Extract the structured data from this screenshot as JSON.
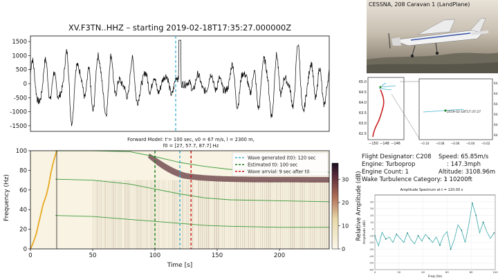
{
  "seismogram": {
    "title": "XV.F3TN..HHZ – starting 2019-02-18T17:35:27.000000Z",
    "yticks": [
      "1500",
      "1000",
      "500",
      "0",
      "-500",
      "-1000",
      "-1500"
    ]
  },
  "spectrogram": {
    "title_line1": "Forward Model: t'= 100 sec, v0 = 67 m/s, l = 2300 m,",
    "title_line2": "f0 = [27, 57.7, 87.7] Hz",
    "ylabel": "Frequency (Hz)",
    "xlabel": "Time [s]",
    "yticks": [
      "0",
      "20",
      "40",
      "60",
      "80",
      "100"
    ],
    "xticks": [
      "0",
      "50",
      "100",
      "150",
      "200"
    ],
    "colorbar_label": "Relative Amplitude (dB)",
    "colorbar_ticks": [
      "0",
      "10",
      "20",
      "30"
    ],
    "legend": [
      {
        "label": "Wave generated (t0): 120 sec",
        "color": "#3fb0d0"
      },
      {
        "label": "Estimated t0: 100 sec",
        "color": "#1a7f1a"
      },
      {
        "label": "Wave arrvial: 9 sec after t0",
        "color": "#cc1111"
      }
    ]
  },
  "aircraft": {
    "photo_caption": "CESSNA, 208 Caravan 1 (LandPlane)",
    "designator": "Flight Designator: C208",
    "engine": "Engine: Turboprop",
    "engine_count": "Engine Count: 1",
    "wake": "Wake Turbulence Category: 1",
    "speed": "Speed: 65.85m/s",
    "speed_mph": ": 147.3mph",
    "altitude": "Altitude: 3108.96m",
    "altitude_ft": ": 10200ft"
  },
  "map": {
    "main_yticks": [
      "65.0",
      "64.5",
      "64.0",
      "63.5",
      "63.0",
      "62.5"
    ],
    "main_xticks": [
      "−150",
      "−148",
      "−146"
    ],
    "zoom_yticks": [
      "64.80",
      "64.79",
      "64.78",
      "64.77",
      "64.76",
      "64.75"
    ],
    "zoom_xticks": [
      "−0.10",
      "−0.08",
      "−0.06",
      "−0.04",
      "−0.02"
    ],
    "zoom_label": "2019-02-18T17:37:27"
  },
  "chart_data": [
    {
      "type": "line",
      "title": "XV.F3TN..HHZ – starting 2019-02-18T17:35:27.000000Z",
      "ylim": [
        -1700,
        1700
      ],
      "annotations": [
        {
          "type": "vline",
          "x_fraction_of_duration": 0.5,
          "color": "#3fb0d0"
        }
      ]
    },
    {
      "type": "heatmap",
      "title": "Forward Model: t'= 100 sec, v0 = 67 m/s, l = 2300 m, f0 = [27, 57.7, 87.7] Hz",
      "xlabel": "Time [s]",
      "ylabel": "Frequency (Hz)",
      "xlim": [
        0,
        240
      ],
      "ylim": [
        0,
        100
      ],
      "colorbar": {
        "label": "Relative Amplitude (dB)",
        "range": [
          0,
          37
        ]
      },
      "vlines": [
        {
          "x": 120,
          "label": "Wave generated (t0): 120 sec",
          "color": "#3fb0d0"
        },
        {
          "x": 100,
          "label": "Estimated t0: 100 sec",
          "color": "#1a7f1a"
        },
        {
          "x": 129,
          "label": "Wave arrvial: 9 sec after t0",
          "color": "#cc1111"
        }
      ],
      "model_curves_x": [
        20,
        50,
        80,
        100,
        120,
        140,
        160,
        200,
        240
      ],
      "model_curves": [
        {
          "f0": 87.7,
          "y": [
            104,
            103,
            99,
            94,
            88,
            84,
            81,
            79,
            78
          ]
        },
        {
          "f0": 57.7,
          "y": [
            71,
            70,
            66,
            61,
            56,
            52,
            50,
            49,
            48
          ]
        },
        {
          "f0": 27,
          "y": [
            34,
            33,
            30,
            28,
            26,
            24,
            23,
            22,
            22
          ]
        }
      ]
    },
    {
      "type": "line",
      "title": "Amplitude Spectrum at t = 120.00 s",
      "xlabel": "Freq (Hz)",
      "ylabel": "Amplitude (dB)",
      "xlim": [
        0,
        100
      ],
      "ylim": [
        -60,
        50
      ],
      "x": [
        0,
        3,
        6,
        9,
        12,
        15,
        18,
        21,
        24,
        27,
        30,
        33,
        36,
        39,
        42,
        45,
        48,
        51,
        54,
        57,
        60,
        63,
        66,
        69,
        72,
        75,
        78,
        81,
        84,
        87,
        90,
        93,
        96,
        99
      ],
      "y": [
        -10,
        -25,
        -5,
        -15,
        -12,
        -20,
        -8,
        -14,
        -20,
        -6,
        -16,
        -22,
        -10,
        -18,
        -8,
        -14,
        -20,
        -12,
        -24,
        -10,
        -4,
        -30,
        -16,
        6,
        -2,
        -20,
        6,
        38,
        20,
        -6,
        10,
        -4,
        -14,
        -6
      ]
    }
  ]
}
